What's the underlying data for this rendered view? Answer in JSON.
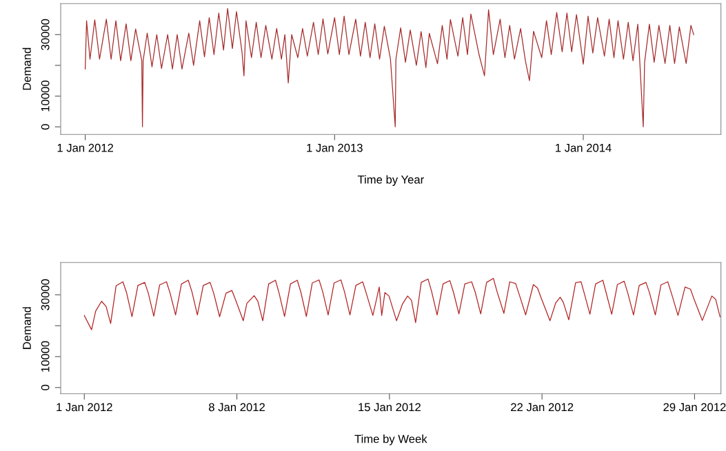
{
  "chart_data": [
    {
      "type": "line",
      "xlabel": "Time by Year",
      "ylabel": "Demand",
      "grid": false,
      "legend": false,
      "xlim": [
        "2011-11-26",
        "2014-07-22"
      ],
      "ylim": [
        -2460,
        40080
      ],
      "xticks": [
        {
          "value": "2012-01-01",
          "label": "1 Jan 2012"
        },
        {
          "value": "2013-01-01",
          "label": "1 Jan 2013"
        },
        {
          "value": "2014-01-01",
          "label": "1 Jan 2014"
        }
      ],
      "yticks": [
        0,
        10000,
        {
          "value": 20000,
          "label": null
        },
        30000
      ],
      "series": [
        {
          "color": "#a52a2a",
          "x": [
            "2012-01-01T00:00",
            "2012-01-03",
            "2012-01-08",
            "2012-01-15",
            "2012-01-22",
            "2012-02-01",
            "2012-02-08",
            "2012-02-15",
            "2012-02-22",
            "2012-03-01",
            "2012-03-08",
            "2012-03-15",
            "2012-03-24",
            "2012-03-25",
            "2012-03-26",
            "2012-04-01",
            "2012-04-08",
            "2012-04-15",
            "2012-04-22",
            "2012-05-01",
            "2012-05-08",
            "2012-05-15",
            "2012-05-22",
            "2012-06-01",
            "2012-06-08",
            "2012-06-17",
            "2012-06-24",
            "2012-07-01",
            "2012-07-08",
            "2012-07-15",
            "2012-07-22",
            "2012-07-28",
            "2012-08-04",
            "2012-08-10",
            "2012-08-18",
            "2012-08-21",
            "2012-08-24",
            "2012-09-01",
            "2012-09-08",
            "2012-09-15",
            "2012-09-22",
            "2012-10-01",
            "2012-10-08",
            "2012-10-15",
            "2012-10-20",
            "2012-10-25",
            "2012-10-30",
            "2012-11-08",
            "2012-11-15",
            "2012-11-22",
            "2012-12-01",
            "2012-12-08",
            "2012-12-15",
            "2012-12-22",
            "2013-01-01",
            "2013-01-08",
            "2013-01-15",
            "2013-01-22",
            "2013-02-01",
            "2013-02-08",
            "2013-02-15",
            "2013-02-22",
            "2013-03-01",
            "2013-03-08",
            "2013-03-15",
            "2013-03-24",
            "2013-03-31",
            "2013-04-01",
            "2013-04-08",
            "2013-04-15",
            "2013-04-22",
            "2013-05-01",
            "2013-05-08",
            "2013-05-15",
            "2013-05-20",
            "2013-06-01",
            "2013-06-08",
            "2013-06-15",
            "2013-06-20",
            "2013-07-01",
            "2013-07-08",
            "2013-07-15",
            "2013-07-20",
            "2013-08-01",
            "2013-08-09",
            "2013-08-15",
            "2013-08-22",
            "2013-09-01",
            "2013-09-08",
            "2013-09-15",
            "2013-09-22",
            "2013-10-01",
            "2013-10-08",
            "2013-10-14",
            "2013-10-20",
            "2013-11-01",
            "2013-11-08",
            "2013-11-15",
            "2013-11-23",
            "2013-12-01",
            "2013-12-08",
            "2013-12-15",
            "2013-12-22",
            "2014-01-01",
            "2014-01-08",
            "2014-01-15",
            "2014-01-22",
            "2014-02-01",
            "2014-02-08",
            "2014-02-15",
            "2014-02-21",
            "2014-03-01",
            "2014-03-08",
            "2014-03-15",
            "2014-03-22",
            "2014-03-30",
            "2014-04-01",
            "2014-04-08",
            "2014-04-15",
            "2014-04-22",
            "2014-05-01",
            "2014-05-08",
            "2014-05-15",
            "2014-05-22",
            "2014-06-01",
            "2014-06-08",
            "2014-06-12"
          ],
          "values": [
            18800,
            34500,
            22000,
            34800,
            22000,
            35000,
            22000,
            34500,
            21500,
            33500,
            21500,
            31800,
            21500,
            0,
            21500,
            30500,
            19500,
            30000,
            19000,
            30000,
            18800,
            30000,
            18800,
            30500,
            20000,
            34500,
            22800,
            35500,
            23500,
            37000,
            25000,
            38500,
            25500,
            37500,
            24500,
            16600,
            34500,
            22500,
            34000,
            22500,
            33000,
            22000,
            32000,
            22000,
            30000,
            14300,
            30000,
            22500,
            32000,
            23000,
            34000,
            23500,
            35100,
            23700,
            35500,
            23500,
            36000,
            23500,
            35000,
            23000,
            34000,
            22500,
            33500,
            22000,
            32700,
            22000,
            0,
            22000,
            32200,
            21000,
            31500,
            20000,
            31000,
            19300,
            30400,
            20500,
            33000,
            22000,
            34900,
            23000,
            35500,
            23500,
            36700,
            23500,
            16600,
            38100,
            23500,
            35000,
            22500,
            33000,
            22000,
            32000,
            21500,
            15000,
            31100,
            22500,
            34500,
            23500,
            37200,
            24400,
            37000,
            24400,
            36500,
            20400,
            36000,
            24000,
            35500,
            23000,
            35000,
            22500,
            34500,
            22000,
            34000,
            21500,
            33400,
            0,
            21000,
            33400,
            21000,
            33000,
            20600,
            33000,
            20600,
            32500,
            20600,
            33000,
            30000
          ]
        }
      ]
    },
    {
      "type": "line",
      "xlabel": "Time by Week",
      "ylabel": "Demand",
      "grid": false,
      "legend": false,
      "xlim": [
        "2011-12-30T22:00",
        "2012-01-30T05:00"
      ],
      "ylim": [
        -2000,
        40440
      ],
      "xticks": [
        {
          "value": "2012-01-01",
          "label": "1 Jan 2012"
        },
        {
          "value": "2012-01-08",
          "label": "8 Jan 2012"
        },
        {
          "value": "2012-01-15",
          "label": "15 Jan 2012"
        },
        {
          "value": "2012-01-22",
          "label": "22 Jan 2012"
        },
        {
          "value": "2012-01-29",
          "label": "29 Jan 2012"
        }
      ],
      "yticks": [
        0,
        10000,
        {
          "value": 20000,
          "label": null
        },
        30000
      ],
      "series": [
        {
          "color": "#b22222",
          "x": [
            "2012-01-01T00:00",
            "2012-01-01T08:00",
            "2012-01-01T12:30",
            "2012-01-01T19:00",
            "2012-01-02T00:00",
            "2012-01-02T05:00",
            "2012-01-02T11:00",
            "2012-01-02T18:30",
            "2012-01-02T22:30",
            "2012-01-03T04:30",
            "2012-01-03T11:00",
            "2012-01-03T18:30",
            "2012-01-03T22:30",
            "2012-01-04T04:30",
            "2012-01-04T11:00",
            "2012-01-04T18:30",
            "2012-01-04T22:30",
            "2012-01-05T04:30",
            "2012-01-05T11:00",
            "2012-01-05T18:30",
            "2012-01-05T22:30",
            "2012-01-06T04:30",
            "2012-01-06T11:00",
            "2012-01-06T18:30",
            "2012-01-06T22:30",
            "2012-01-07T05:00",
            "2012-01-07T12:00",
            "2012-01-07T18:30",
            "2012-01-07T23:00",
            "2012-01-08T07:00",
            "2012-01-08T11:00",
            "2012-01-08T19:00",
            "2012-01-08T23:00",
            "2012-01-09T04:30",
            "2012-01-09T11:00",
            "2012-01-09T18:30",
            "2012-01-09T22:30",
            "2012-01-10T04:30",
            "2012-01-10T11:00",
            "2012-01-10T18:30",
            "2012-01-10T22:30",
            "2012-01-11T04:30",
            "2012-01-11T11:00",
            "2012-01-11T18:30",
            "2012-01-11T22:30",
            "2012-01-12T04:30",
            "2012-01-12T11:00",
            "2012-01-12T18:30",
            "2012-01-12T22:30",
            "2012-01-13T04:30",
            "2012-01-13T11:00",
            "2012-01-13T18:30",
            "2012-01-13T22:30",
            "2012-01-14T05:45",
            "2012-01-14T12:45",
            "2012-01-14T15:30",
            "2012-01-14T19:00",
            "2012-01-14T23:30",
            "2012-01-15T07:50",
            "2012-01-15T14:20",
            "2012-01-15T20:00",
            "2012-01-16T00:15",
            "2012-01-16T04:50",
            "2012-01-16T11:00",
            "2012-01-16T18:30",
            "2012-01-16T22:30",
            "2012-01-17T04:30",
            "2012-01-17T11:00",
            "2012-01-17T18:30",
            "2012-01-17T22:30",
            "2012-01-18T04:30",
            "2012-01-18T11:00",
            "2012-01-18T18:30",
            "2012-01-18T22:30",
            "2012-01-19T04:30",
            "2012-01-19T11:00",
            "2012-01-19T18:30",
            "2012-01-19T22:30",
            "2012-01-20T06:00",
            "2012-01-20T12:30",
            "2012-01-20T19:00",
            "2012-01-20T23:00",
            "2012-01-21T06:00",
            "2012-01-21T14:30",
            "2012-01-21T19:00",
            "2012-01-21T23:00",
            "2012-01-22T08:45",
            "2012-01-22T15:00",
            "2012-01-22T20:00",
            "2012-01-22T23:30",
            "2012-01-23T05:30",
            "2012-01-23T13:00",
            "2012-01-23T19:00",
            "2012-01-23T22:30",
            "2012-01-24T04:45",
            "2012-01-24T11:00",
            "2012-01-24T19:00",
            "2012-01-24T22:30",
            "2012-01-25T04:45",
            "2012-01-25T11:00",
            "2012-01-25T18:30",
            "2012-01-25T22:30",
            "2012-01-26T04:45",
            "2012-01-26T11:00",
            "2012-01-26T18:30",
            "2012-01-26T22:30",
            "2012-01-27T04:45",
            "2012-01-27T11:00",
            "2012-01-27T18:30",
            "2012-01-27T22:30",
            "2012-01-28T05:45",
            "2012-01-28T13:30",
            "2012-01-28T19:30",
            "2012-01-28T23:30",
            "2012-01-29T08:30",
            "2012-01-29T19:00",
            "2012-01-29T23:15",
            "2012-01-30T04:00"
          ],
          "values": [
            23300,
            18700,
            24700,
            27900,
            26200,
            20700,
            32900,
            34200,
            30700,
            22900,
            33000,
            34000,
            30500,
            23100,
            33200,
            34200,
            30500,
            23500,
            33500,
            34700,
            31000,
            23500,
            33000,
            34000,
            30500,
            22900,
            30500,
            31400,
            28000,
            21600,
            27200,
            29700,
            28000,
            21600,
            33500,
            34700,
            30500,
            23000,
            33500,
            34700,
            30800,
            23000,
            33800,
            34800,
            31000,
            23500,
            33800,
            34800,
            31000,
            23500,
            33000,
            34200,
            30500,
            23300,
            32500,
            23300,
            30700,
            29600,
            21600,
            27000,
            29600,
            28200,
            21000,
            34000,
            35100,
            31000,
            23500,
            33500,
            34600,
            30800,
            23800,
            33500,
            34200,
            30800,
            23800,
            34000,
            35300,
            31000,
            24000,
            34200,
            33600,
            30000,
            23500,
            33300,
            32200,
            29000,
            21600,
            27300,
            29200,
            27500,
            21900,
            33900,
            34200,
            30500,
            23700,
            33500,
            34700,
            30800,
            23700,
            33300,
            34400,
            30500,
            23500,
            33000,
            34000,
            30500,
            23500,
            33200,
            34200,
            30500,
            23300,
            32500,
            31800,
            28500,
            21700,
            29600,
            28500,
            22900
          ]
        }
      ]
    }
  ]
}
